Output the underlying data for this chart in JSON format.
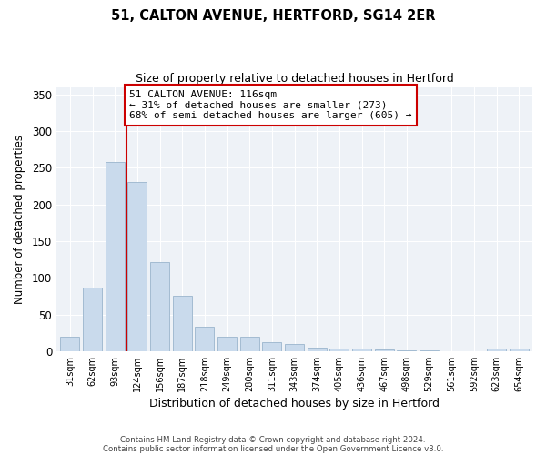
{
  "title": "51, CALTON AVENUE, HERTFORD, SG14 2ER",
  "subtitle": "Size of property relative to detached houses in Hertford",
  "xlabel": "Distribution of detached houses by size in Hertford",
  "ylabel": "Number of detached properties",
  "categories": [
    "31sqm",
    "62sqm",
    "93sqm",
    "124sqm",
    "156sqm",
    "187sqm",
    "218sqm",
    "249sqm",
    "280sqm",
    "311sqm",
    "343sqm",
    "374sqm",
    "405sqm",
    "436sqm",
    "467sqm",
    "498sqm",
    "529sqm",
    "561sqm",
    "592sqm",
    "623sqm",
    "654sqm"
  ],
  "values": [
    19,
    87,
    258,
    230,
    121,
    76,
    33,
    20,
    20,
    12,
    10,
    5,
    4,
    3,
    2,
    1,
    1,
    0,
    0,
    3,
    3
  ],
  "bar_color": "#c9daec",
  "bar_edge_color": "#9ab5cc",
  "background_color": "#ffffff",
  "plot_bg_color": "#eef2f7",
  "grid_color": "#ffffff",
  "vline_color": "#cc0000",
  "annotation_title": "51 CALTON AVENUE: 116sqm",
  "annotation_line1": "← 31% of detached houses are smaller (273)",
  "annotation_line2": "68% of semi-detached houses are larger (605) →",
  "annotation_box_color": "#cc0000",
  "ylim": [
    0,
    360
  ],
  "yticks": [
    0,
    50,
    100,
    150,
    200,
    250,
    300,
    350
  ],
  "footer1": "Contains HM Land Registry data © Crown copyright and database right 2024.",
  "footer2": "Contains public sector information licensed under the Open Government Licence v3.0."
}
